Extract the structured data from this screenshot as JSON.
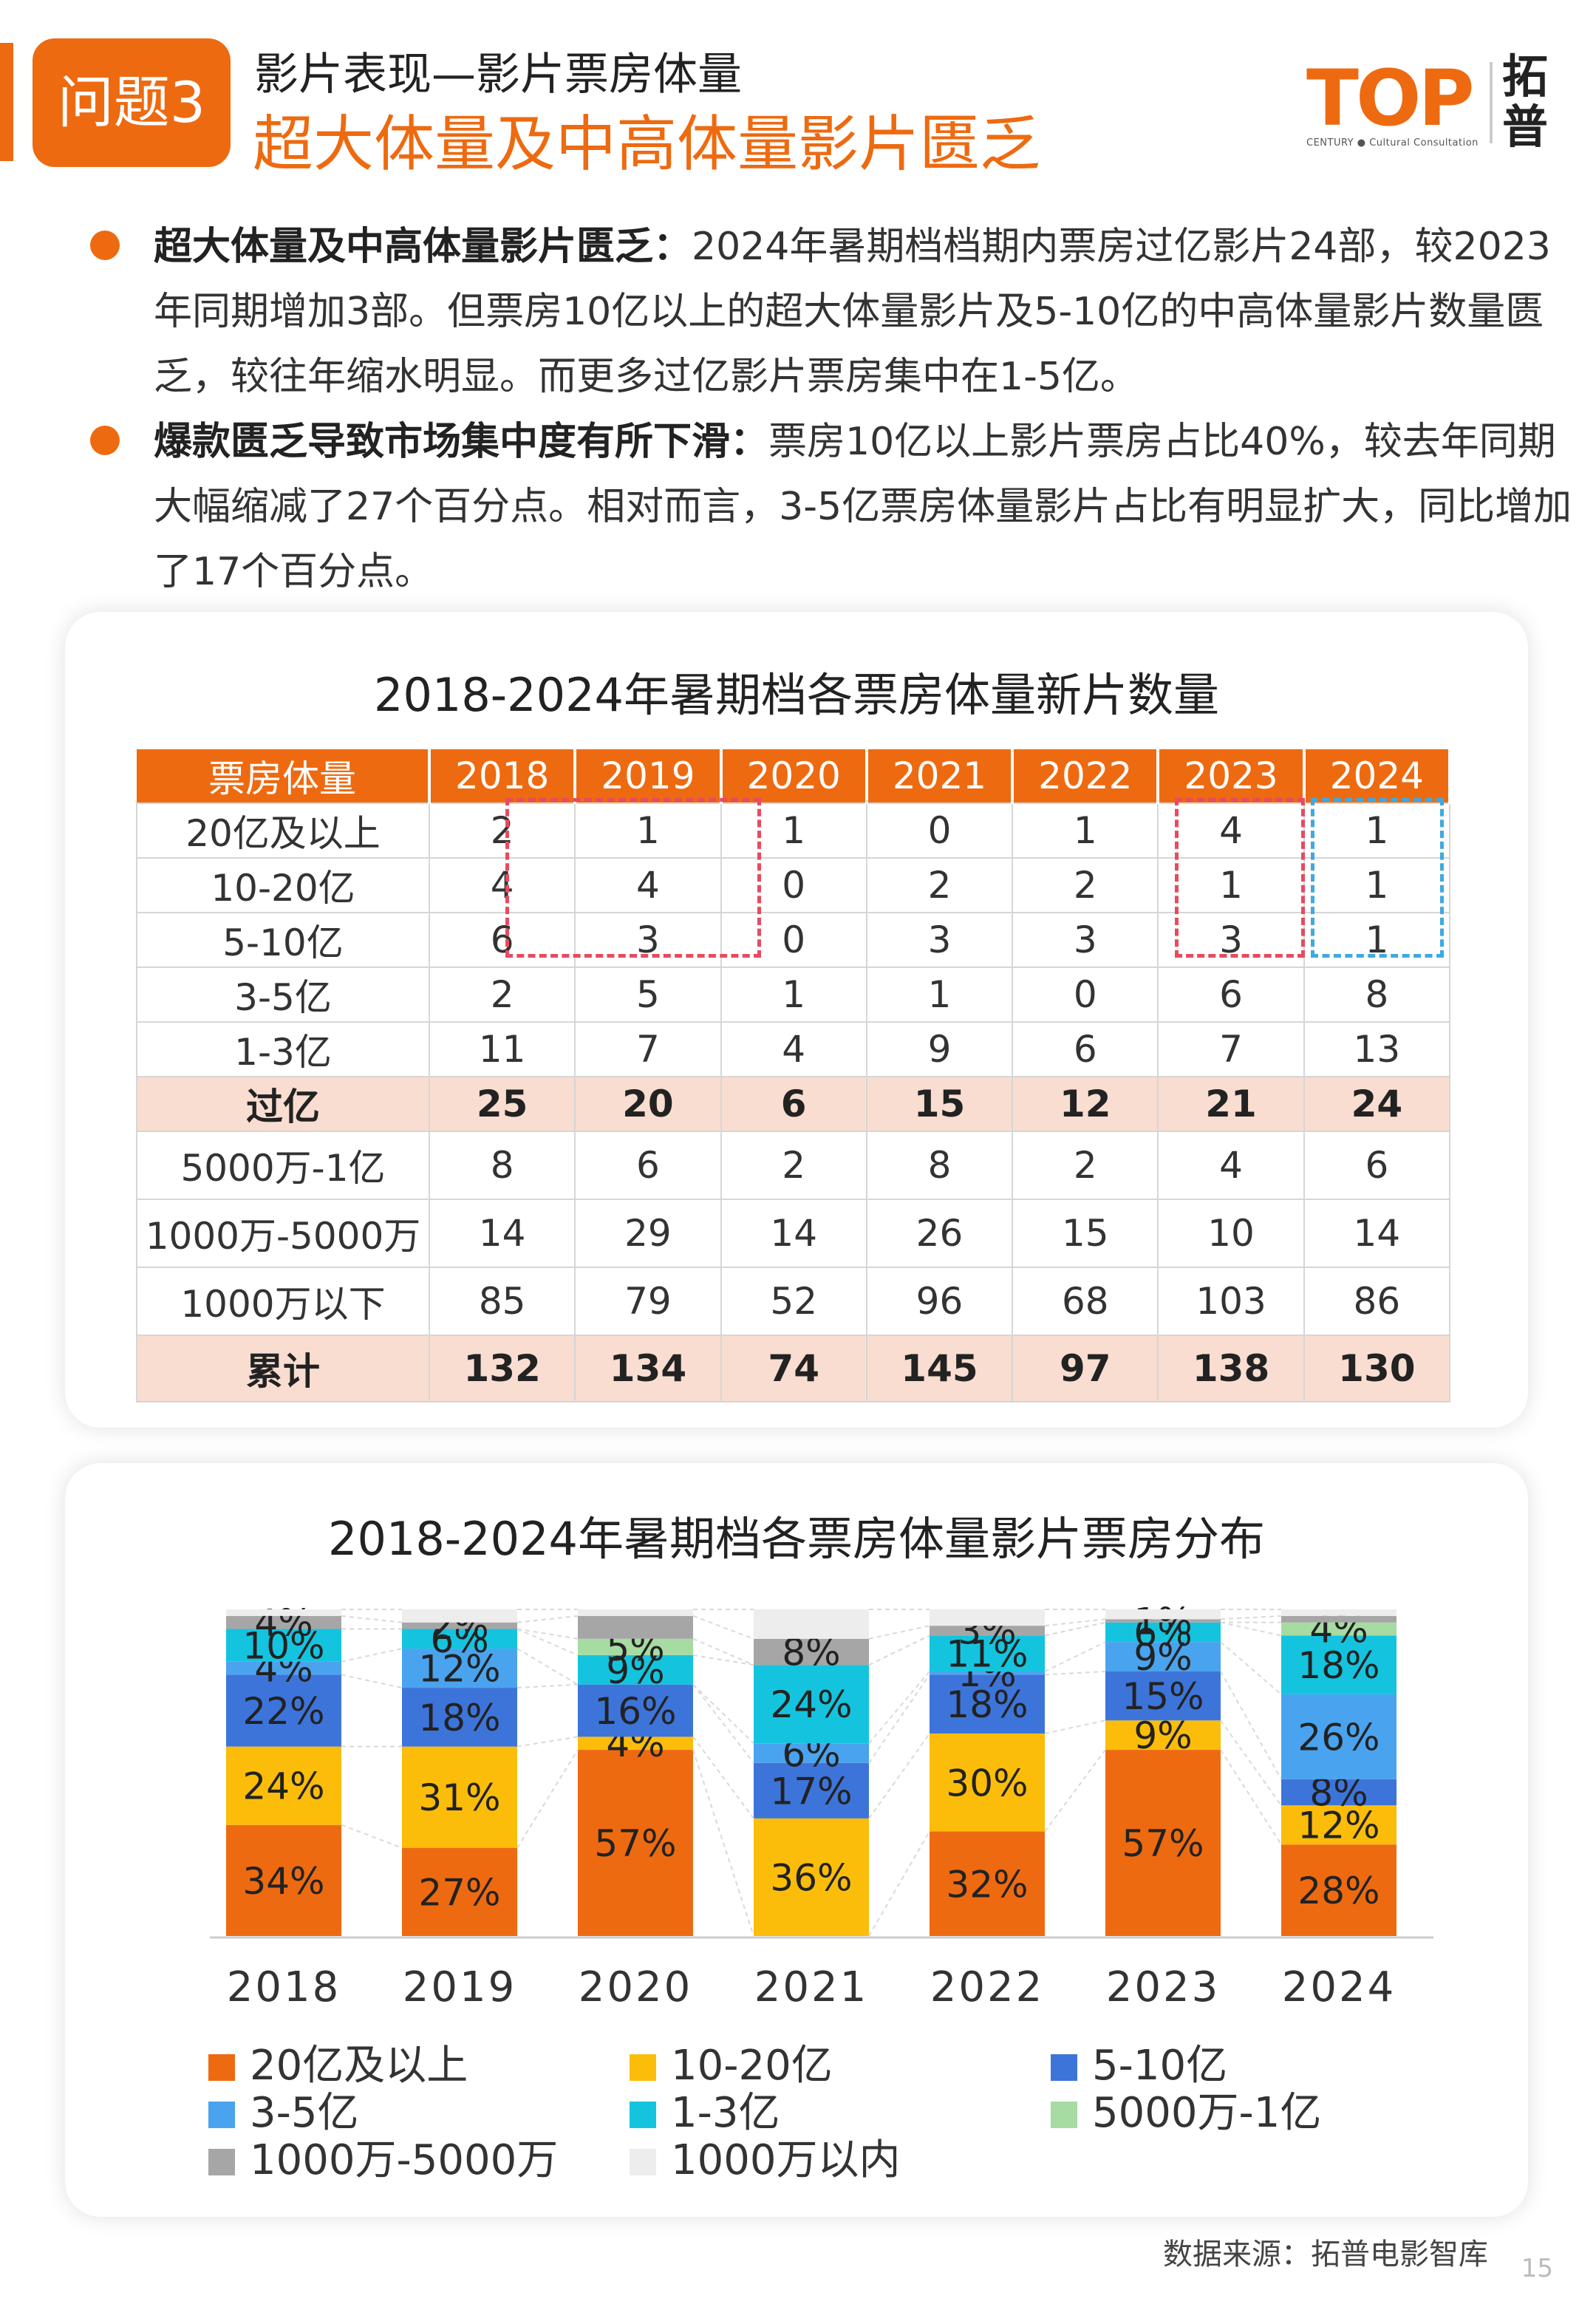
{
  "header": {
    "badge": "问题3",
    "subtitle": "影片表现—影片票房体量",
    "title": "超大体量及中高体量影片匮乏",
    "logo_text": "TOP",
    "logo_small": "CENTURY ● Cultural Consultation",
    "logo_cn_1": "拓",
    "logo_cn_2": "普"
  },
  "bullets": [
    {
      "bold": "超大体量及中高体量影片匮乏：",
      "text": "2024年暑期档档期内票房过亿影片24部，较2023年同期增加3部。但票房10亿以上的超大体量影片及5-10亿的中高体量影片数量匮乏，较往年缩水明显。而更多过亿影片票房集中在1-5亿。"
    },
    {
      "bold": "爆款匮乏导致市场集中度有所下滑：",
      "text": "票房10亿以上影片票房占比40%，较去年同期大幅缩减了27个百分点。相对而言，3-5亿票房体量影片占比有明显扩大，同比增加了17个百分点。"
    }
  ],
  "table": {
    "title": "2018-2024年暑期档各票房体量新片数量",
    "headers": [
      "票房体量",
      "2018",
      "2019",
      "2020",
      "2021",
      "2022",
      "2023",
      "2024"
    ],
    "rows": [
      [
        "20亿及以上",
        "2",
        "1",
        "1",
        "0",
        "1",
        "4",
        "1"
      ],
      [
        "10-20亿",
        "4",
        "4",
        "0",
        "2",
        "2",
        "1",
        "1"
      ],
      [
        "5-10亿",
        "6",
        "3",
        "0",
        "3",
        "3",
        "3",
        "1"
      ],
      [
        "3-5亿",
        "2",
        "5",
        "1",
        "1",
        "0",
        "6",
        "8"
      ],
      [
        "1-3亿",
        "11",
        "7",
        "4",
        "9",
        "6",
        "7",
        "13"
      ],
      [
        "过亿",
        "25",
        "20",
        "6",
        "15",
        "12",
        "21",
        "24"
      ],
      [
        "5000万-1亿",
        "8",
        "6",
        "2",
        "8",
        "2",
        "4",
        "6"
      ],
      [
        "1000万-5000万",
        "14",
        "29",
        "14",
        "26",
        "15",
        "10",
        "14"
      ],
      [
        "1000万以下",
        "85",
        "79",
        "52",
        "96",
        "68",
        "103",
        "86"
      ],
      [
        "累计",
        "132",
        "134",
        "74",
        "145",
        "97",
        "138",
        "130"
      ]
    ]
  },
  "chart_data": {
    "type": "bar",
    "stacked": true,
    "title": "2018-2024年暑期档各票房体量影片票房分布",
    "categories": [
      "2018",
      "2019",
      "2020",
      "2021",
      "2022",
      "2023",
      "2024"
    ],
    "ylim": [
      0,
      100
    ],
    "unit": "%",
    "series": [
      {
        "name": "20亿及以上",
        "color": "#ee6a10",
        "values": [
          34,
          27,
          57,
          0,
          32,
          57,
          28
        ],
        "labels": [
          "34%",
          "27%",
          "57%",
          "",
          "32%",
          "57%",
          "28%"
        ]
      },
      {
        "name": "10-20亿",
        "color": "#fbbd0a",
        "values": [
          24,
          31,
          4,
          36,
          30,
          9,
          12
        ],
        "labels": [
          "24%",
          "31%",
          "4%",
          "36%",
          "30%",
          "9%",
          "12%"
        ]
      },
      {
        "name": "5-10亿",
        "color": "#3d74d9",
        "values": [
          22,
          18,
          16,
          17,
          18,
          15,
          8
        ],
        "labels": [
          "22%",
          "18%",
          "16%",
          "17%",
          "18%",
          "15%",
          "8%"
        ]
      },
      {
        "name": "3-5亿",
        "color": "#4aa3ee",
        "values": [
          4,
          12,
          0,
          6,
          1,
          9,
          26
        ],
        "labels": [
          "4%",
          "12%",
          "",
          "6%",
          "1%",
          "9%",
          "26%"
        ]
      },
      {
        "name": "1-3亿",
        "color": "#14c4de",
        "values": [
          10,
          6,
          9,
          24,
          11,
          6,
          18
        ],
        "labels": [
          "10%",
          "6%",
          "9%",
          "24%",
          "11%",
          "6%",
          "18%"
        ]
      },
      {
        "name": "5000万-1亿",
        "color": "#a6dba2",
        "values": [
          0,
          0,
          5,
          0,
          0,
          0,
          4
        ],
        "labels": [
          "",
          "",
          "5%",
          "",
          "",
          "",
          "4%"
        ]
      },
      {
        "name": "1000万-5000万",
        "color": "#a6a6a6",
        "values": [
          4,
          2,
          7,
          8,
          3,
          1,
          2
        ],
        "labels": [
          "4%",
          "2%",
          "",
          "8%",
          "3%",
          "1%",
          ""
        ]
      },
      {
        "name": "1000万以内",
        "color": "#ededed",
        "values": [
          2,
          4,
          2,
          9,
          5,
          3,
          2
        ],
        "labels": [
          "",
          "",
          "",
          "",
          "",
          "",
          ""
        ]
      }
    ]
  },
  "legend_rows": [
    [
      "20亿及以上",
      "10-20亿",
      "5-10亿"
    ],
    [
      "3-5亿",
      "1-3亿",
      "5000万-1亿"
    ],
    [
      "1000万-5000万",
      "1000万以内"
    ]
  ],
  "source": "数据来源：拓普电影智库",
  "page_number": "15"
}
